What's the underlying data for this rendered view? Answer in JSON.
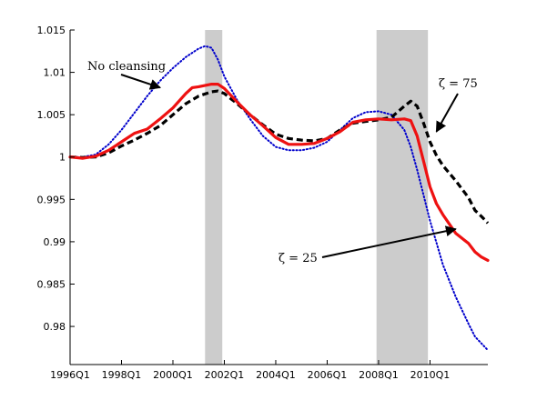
{
  "chart_data": {
    "type": "line",
    "x_tick_labels": [
      "1996Q1",
      "1998Q1",
      "2000Q1",
      "2002Q1",
      "2004Q1",
      "2006Q1",
      "2008Q1",
      "2010Q1"
    ],
    "x_range": [
      1996.0,
      2012.25
    ],
    "y_ticks": [
      0.98,
      0.985,
      0.99,
      0.995,
      1.0,
      1.005,
      1.01,
      1.015
    ],
    "y_tick_labels": [
      "0.98",
      "0.985",
      "0.99",
      "0.995",
      "1",
      "1.005",
      "1.01",
      "1.015"
    ],
    "ylim": [
      0.9755,
      1.015
    ],
    "grid": false,
    "shaded_periods": [
      [
        2001.25,
        2001.92
      ],
      [
        2007.92,
        2009.92
      ]
    ],
    "series": [
      {
        "name": "No cleansing",
        "color": "#0000cc",
        "style": "dotted",
        "points": [
          [
            1996.0,
            1.0
          ],
          [
            1996.5,
            1.0
          ],
          [
            1997.0,
            1.0003
          ],
          [
            1997.5,
            1.0015
          ],
          [
            1998.0,
            1.0032
          ],
          [
            1998.5,
            1.0052
          ],
          [
            1999.0,
            1.0072
          ],
          [
            1999.5,
            1.009
          ],
          [
            2000.0,
            1.0105
          ],
          [
            2000.5,
            1.0118
          ],
          [
            2001.0,
            1.0128
          ],
          [
            2001.25,
            1.0131
          ],
          [
            2001.5,
            1.0129
          ],
          [
            2001.75,
            1.0115
          ],
          [
            2002.0,
            1.0095
          ],
          [
            2002.5,
            1.0067
          ],
          [
            2003.0,
            1.0045
          ],
          [
            2003.5,
            1.0025
          ],
          [
            2004.0,
            1.0012
          ],
          [
            2004.5,
            1.0008
          ],
          [
            2005.0,
            1.0008
          ],
          [
            2005.5,
            1.0011
          ],
          [
            2006.0,
            1.0018
          ],
          [
            2006.5,
            1.0032
          ],
          [
            2007.0,
            1.0046
          ],
          [
            2007.5,
            1.0053
          ],
          [
            2008.0,
            1.0054
          ],
          [
            2008.5,
            1.005
          ],
          [
            2009.0,
            1.0032
          ],
          [
            2009.25,
            1.0012
          ],
          [
            2009.5,
            0.9985
          ],
          [
            2009.75,
            0.9955
          ],
          [
            2010.0,
            0.9925
          ],
          [
            2010.5,
            0.9873
          ],
          [
            2011.0,
            0.9835
          ],
          [
            2011.5,
            0.9803
          ],
          [
            2011.75,
            0.9788
          ],
          [
            2012.25,
            0.9772
          ]
        ]
      },
      {
        "name": "ζ = 25",
        "color": "#ee1111",
        "style": "solid",
        "points": [
          [
            1996.0,
            1.0
          ],
          [
            1996.5,
            0.99985
          ],
          [
            1997.0,
            1.0001
          ],
          [
            1997.5,
            1.0008
          ],
          [
            1998.0,
            1.0018
          ],
          [
            1998.5,
            1.0028
          ],
          [
            1999.0,
            1.0033
          ],
          [
            1999.5,
            1.0045
          ],
          [
            2000.0,
            1.0058
          ],
          [
            2000.5,
            1.0075
          ],
          [
            2000.75,
            1.0082
          ],
          [
            2001.0,
            1.0083
          ],
          [
            2001.5,
            1.0086
          ],
          [
            2001.75,
            1.0086
          ],
          [
            2002.0,
            1.0081
          ],
          [
            2002.5,
            1.0065
          ],
          [
            2003.0,
            1.005
          ],
          [
            2003.5,
            1.0037
          ],
          [
            2004.0,
            1.0023
          ],
          [
            2004.5,
            1.0015
          ],
          [
            2005.0,
            1.0015
          ],
          [
            2005.5,
            1.0016
          ],
          [
            2006.0,
            1.0022
          ],
          [
            2006.5,
            1.003
          ],
          [
            2007.0,
            1.0041
          ],
          [
            2007.5,
            1.0044
          ],
          [
            2008.0,
            1.0045
          ],
          [
            2008.5,
            1.0044
          ],
          [
            2009.0,
            1.0045
          ],
          [
            2009.25,
            1.0043
          ],
          [
            2009.5,
            1.0025
          ],
          [
            2009.75,
            0.9995
          ],
          [
            2010.0,
            0.9965
          ],
          [
            2010.25,
            0.9945
          ],
          [
            2010.5,
            0.9932
          ],
          [
            2011.0,
            0.991
          ],
          [
            2011.5,
            0.9898
          ],
          [
            2011.75,
            0.9888
          ],
          [
            2012.0,
            0.9882
          ],
          [
            2012.25,
            0.9878
          ]
        ]
      },
      {
        "name": "ζ = 75",
        "color": "#000000",
        "style": "dashed",
        "points": [
          [
            1996.0,
            1.0
          ],
          [
            1996.5,
            0.99995
          ],
          [
            1997.0,
            1.0
          ],
          [
            1997.5,
            1.0005
          ],
          [
            1998.0,
            1.0013
          ],
          [
            1998.5,
            1.002
          ],
          [
            1999.0,
            1.0028
          ],
          [
            1999.5,
            1.0037
          ],
          [
            2000.0,
            1.005
          ],
          [
            2000.5,
            1.0063
          ],
          [
            2001.0,
            1.0072
          ],
          [
            2001.5,
            1.0077
          ],
          [
            2001.75,
            1.0078
          ],
          [
            2002.0,
            1.0075
          ],
          [
            2002.5,
            1.0063
          ],
          [
            2003.0,
            1.005
          ],
          [
            2003.5,
            1.0038
          ],
          [
            2004.0,
            1.0027
          ],
          [
            2004.5,
            1.0022
          ],
          [
            2005.0,
            1.002
          ],
          [
            2005.5,
            1.0019
          ],
          [
            2006.0,
            1.0022
          ],
          [
            2006.5,
            1.0032
          ],
          [
            2007.0,
            1.004
          ],
          [
            2007.5,
            1.0042
          ],
          [
            2008.0,
            1.0044
          ],
          [
            2008.5,
            1.0047
          ],
          [
            2009.0,
            1.006
          ],
          [
            2009.25,
            1.0066
          ],
          [
            2009.5,
            1.006
          ],
          [
            2009.75,
            1.004
          ],
          [
            2010.0,
            1.0018
          ],
          [
            2010.25,
            1.0002
          ],
          [
            2010.5,
            0.999
          ],
          [
            2011.0,
            0.9972
          ],
          [
            2011.5,
            0.9952
          ],
          [
            2011.75,
            0.9937
          ],
          [
            2012.0,
            0.993
          ],
          [
            2012.25,
            0.9922
          ]
        ]
      }
    ],
    "annotations": [
      {
        "id": "no-cleansing",
        "text": "No cleansing",
        "series": "No cleansing",
        "arrow_to": [
          1999.5,
          1.0082
        ]
      },
      {
        "id": "zeta-75",
        "text": "ζ = 75",
        "series": "ζ = 75",
        "arrow_to": [
          2010.25,
          1.003
        ]
      },
      {
        "id": "zeta-25",
        "text": "ζ = 25",
        "series": "ζ = 25",
        "arrow_to": [
          2011.0,
          0.9915
        ]
      }
    ]
  }
}
